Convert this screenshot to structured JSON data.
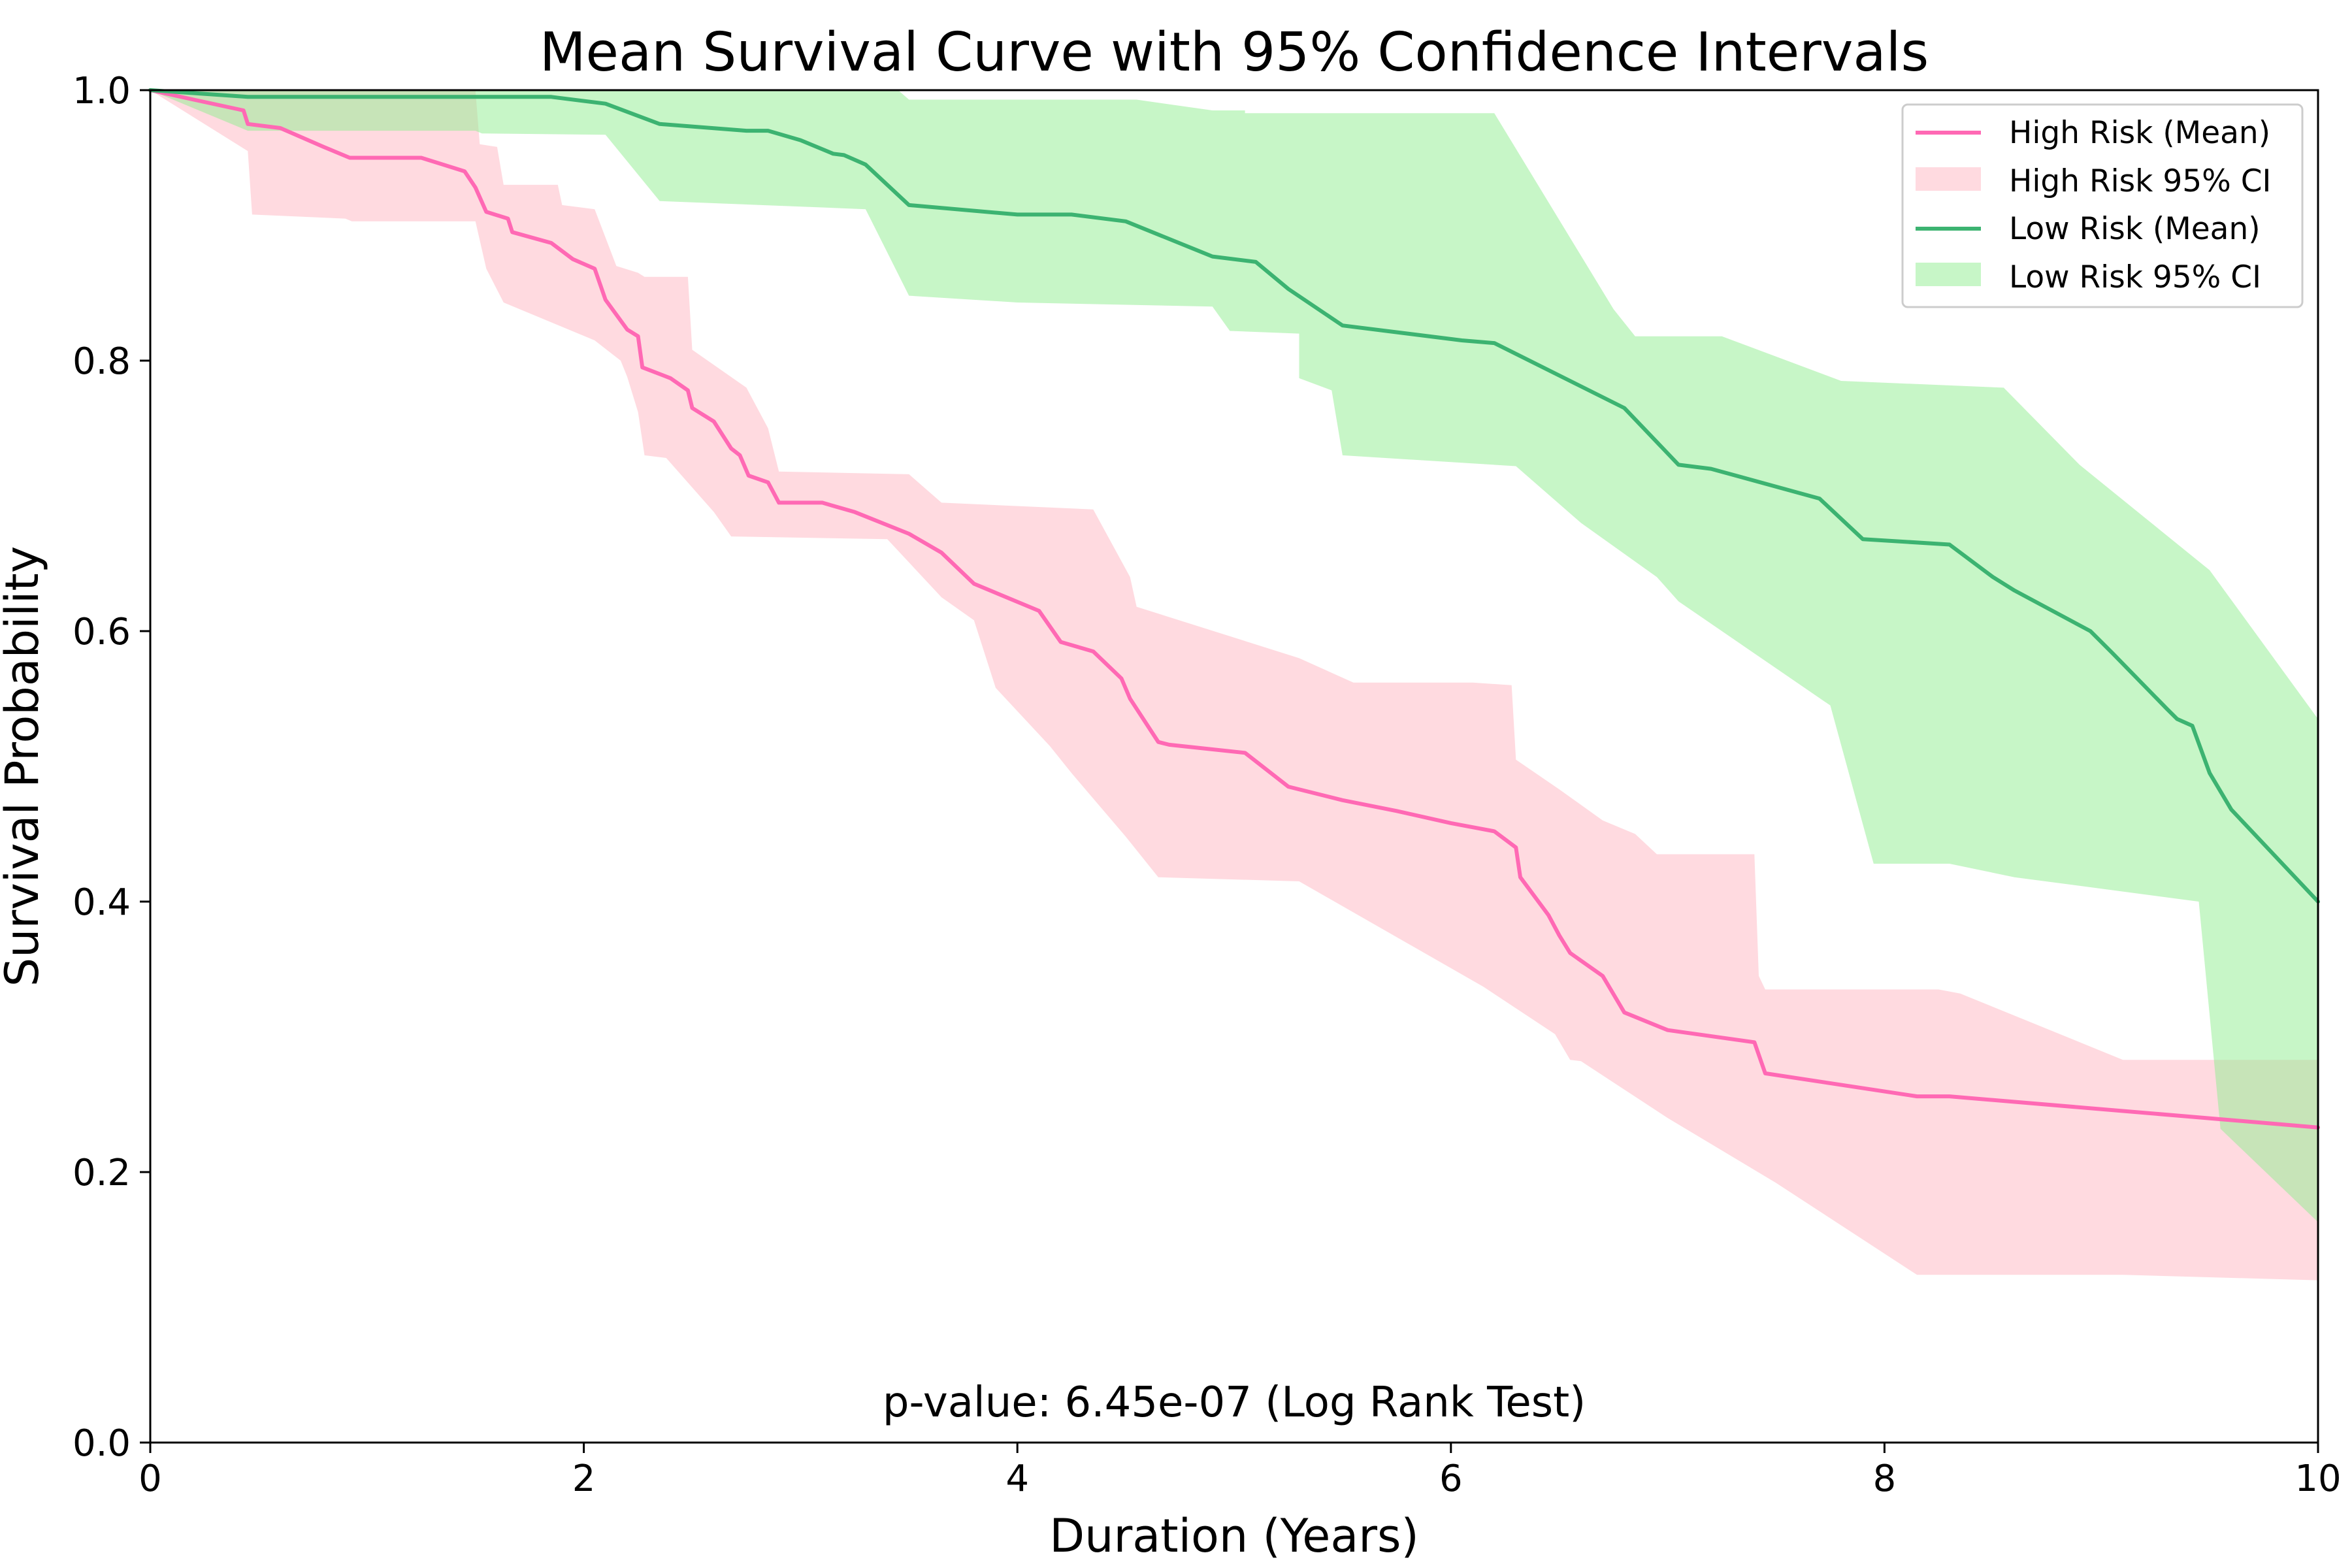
{
  "chart_data": {
    "type": "line",
    "title": "Mean Survival Curve with 95% Confidence Intervals",
    "xlabel": "Duration (Years)",
    "ylabel": "Survival Probability",
    "xlim": [
      0,
      10
    ],
    "ylim": [
      0,
      1
    ],
    "x_ticks": [
      "0",
      "2",
      "4",
      "6",
      "8",
      "10"
    ],
    "y_ticks": [
      "0.0",
      "0.2",
      "0.4",
      "0.6",
      "0.8",
      "1.0"
    ],
    "grid": false,
    "legend_position": "top-right",
    "annotation": "p-value: 6.45e-07 (Log Rank Test)",
    "series": [
      {
        "name": "High Risk (Mean)",
        "ci_name": "High Risk 95% CI",
        "color": "#ff69b4",
        "ci_color": "#ffb6c1",
        "mean": [
          [
            0,
            1.0
          ],
          [
            0.2,
            0.993
          ],
          [
            0.43,
            0.985
          ],
          [
            0.45,
            0.975
          ],
          [
            0.6,
            0.972
          ],
          [
            0.8,
            0.958
          ],
          [
            0.92,
            0.95
          ],
          [
            1.25,
            0.95
          ],
          [
            1.45,
            0.94
          ],
          [
            1.5,
            0.928
          ],
          [
            1.55,
            0.91
          ],
          [
            1.65,
            0.905
          ],
          [
            1.67,
            0.895
          ],
          [
            1.85,
            0.887
          ],
          [
            1.95,
            0.875
          ],
          [
            2.05,
            0.868
          ],
          [
            2.1,
            0.845
          ],
          [
            2.2,
            0.823
          ],
          [
            2.25,
            0.818
          ],
          [
            2.27,
            0.795
          ],
          [
            2.4,
            0.787
          ],
          [
            2.48,
            0.778
          ],
          [
            2.5,
            0.765
          ],
          [
            2.6,
            0.755
          ],
          [
            2.68,
            0.735
          ],
          [
            2.72,
            0.73
          ],
          [
            2.76,
            0.715
          ],
          [
            2.85,
            0.71
          ],
          [
            2.9,
            0.695
          ],
          [
            3.1,
            0.695
          ],
          [
            3.25,
            0.688
          ],
          [
            3.5,
            0.672
          ],
          [
            3.65,
            0.658
          ],
          [
            3.8,
            0.635
          ],
          [
            4.1,
            0.615
          ],
          [
            4.2,
            0.592
          ],
          [
            4.35,
            0.585
          ],
          [
            4.48,
            0.565
          ],
          [
            4.52,
            0.55
          ],
          [
            4.65,
            0.518
          ],
          [
            4.7,
            0.516
          ],
          [
            5.05,
            0.51
          ],
          [
            5.25,
            0.485
          ],
          [
            5.5,
            0.475
          ],
          [
            5.75,
            0.467
          ],
          [
            6.0,
            0.458
          ],
          [
            6.2,
            0.452
          ],
          [
            6.3,
            0.44
          ],
          [
            6.32,
            0.418
          ],
          [
            6.45,
            0.39
          ],
          [
            6.5,
            0.375
          ],
          [
            6.55,
            0.362
          ],
          [
            6.7,
            0.345
          ],
          [
            6.8,
            0.318
          ],
          [
            7.0,
            0.305
          ],
          [
            7.4,
            0.296
          ],
          [
            7.45,
            0.273
          ],
          [
            8.15,
            0.256
          ],
          [
            8.3,
            0.256
          ],
          [
            10.0,
            0.233
          ]
        ],
        "ci_upper": [
          [
            0,
            1.0
          ],
          [
            0.45,
            1.0
          ],
          [
            1.5,
            1.0
          ],
          [
            1.52,
            0.96
          ],
          [
            1.6,
            0.958
          ],
          [
            1.63,
            0.93
          ],
          [
            1.88,
            0.93
          ],
          [
            1.9,
            0.915
          ],
          [
            2.05,
            0.912
          ],
          [
            2.15,
            0.87
          ],
          [
            2.25,
            0.865
          ],
          [
            2.28,
            0.862
          ],
          [
            2.48,
            0.862
          ],
          [
            2.5,
            0.808
          ],
          [
            2.75,
            0.78
          ],
          [
            2.85,
            0.75
          ],
          [
            2.9,
            0.718
          ],
          [
            3.5,
            0.716
          ],
          [
            3.65,
            0.695
          ],
          [
            4.35,
            0.69
          ],
          [
            4.52,
            0.64
          ],
          [
            4.55,
            0.618
          ],
          [
            5.3,
            0.58
          ],
          [
            5.55,
            0.562
          ],
          [
            6.1,
            0.562
          ],
          [
            6.28,
            0.56
          ],
          [
            6.3,
            0.505
          ],
          [
            6.5,
            0.483
          ],
          [
            6.7,
            0.46
          ],
          [
            6.85,
            0.45
          ],
          [
            6.95,
            0.435
          ],
          [
            7.4,
            0.435
          ],
          [
            7.42,
            0.345
          ],
          [
            7.45,
            0.335
          ],
          [
            8.25,
            0.335
          ],
          [
            8.35,
            0.332
          ],
          [
            9.1,
            0.283
          ],
          [
            10.0,
            0.283
          ]
        ],
        "ci_lower": [
          [
            0,
            1.0
          ],
          [
            0.45,
            0.955
          ],
          [
            0.47,
            0.908
          ],
          [
            0.9,
            0.905
          ],
          [
            0.93,
            0.903
          ],
          [
            1.5,
            0.903
          ],
          [
            1.55,
            0.868
          ],
          [
            1.63,
            0.843
          ],
          [
            2.05,
            0.815
          ],
          [
            2.17,
            0.8
          ],
          [
            2.2,
            0.788
          ],
          [
            2.25,
            0.762
          ],
          [
            2.28,
            0.73
          ],
          [
            2.38,
            0.728
          ],
          [
            2.6,
            0.688
          ],
          [
            2.68,
            0.67
          ],
          [
            3.4,
            0.668
          ],
          [
            3.65,
            0.625
          ],
          [
            3.8,
            0.608
          ],
          [
            3.9,
            0.558
          ],
          [
            4.15,
            0.515
          ],
          [
            4.25,
            0.495
          ],
          [
            4.5,
            0.448
          ],
          [
            4.65,
            0.418
          ],
          [
            5.3,
            0.415
          ],
          [
            6.15,
            0.337
          ],
          [
            6.48,
            0.302
          ],
          [
            6.55,
            0.283
          ],
          [
            6.6,
            0.282
          ],
          [
            7.0,
            0.24
          ],
          [
            7.5,
            0.192
          ],
          [
            8.15,
            0.124
          ],
          [
            9.1,
            0.124
          ],
          [
            10.0,
            0.12
          ]
        ]
      },
      {
        "name": "Low Risk (Mean)",
        "ci_name": "Low Risk 95% CI",
        "color": "#3cb371",
        "ci_color": "#90ee90",
        "mean": [
          [
            0,
            1.0
          ],
          [
            0.45,
            0.995
          ],
          [
            1.85,
            0.995
          ],
          [
            2.1,
            0.99
          ],
          [
            2.35,
            0.975
          ],
          [
            2.75,
            0.97
          ],
          [
            2.85,
            0.97
          ],
          [
            3.0,
            0.963
          ],
          [
            3.15,
            0.953
          ],
          [
            3.2,
            0.952
          ],
          [
            3.3,
            0.945
          ],
          [
            3.5,
            0.915
          ],
          [
            4.0,
            0.908
          ],
          [
            4.25,
            0.908
          ],
          [
            4.5,
            0.903
          ],
          [
            4.9,
            0.877
          ],
          [
            5.1,
            0.873
          ],
          [
            5.25,
            0.853
          ],
          [
            5.5,
            0.826
          ],
          [
            6.05,
            0.815
          ],
          [
            6.2,
            0.813
          ],
          [
            6.8,
            0.765
          ],
          [
            7.05,
            0.723
          ],
          [
            7.2,
            0.72
          ],
          [
            7.7,
            0.698
          ],
          [
            7.9,
            0.668
          ],
          [
            8.3,
            0.664
          ],
          [
            8.5,
            0.64
          ],
          [
            8.6,
            0.63
          ],
          [
            8.95,
            0.6
          ],
          [
            9.05,
            0.584
          ],
          [
            9.3,
            0.543
          ],
          [
            9.35,
            0.535
          ],
          [
            9.42,
            0.53
          ],
          [
            9.5,
            0.495
          ],
          [
            9.6,
            0.468
          ],
          [
            10.0,
            0.4
          ]
        ],
        "ci_upper": [
          [
            0,
            1.0
          ],
          [
            0.45,
            1.0
          ],
          [
            3.45,
            1.0
          ],
          [
            3.5,
            0.993
          ],
          [
            4.55,
            0.993
          ],
          [
            4.9,
            0.985
          ],
          [
            5.05,
            0.985
          ],
          [
            5.05,
            0.983
          ],
          [
            5.15,
            0.983
          ],
          [
            6.2,
            0.983
          ],
          [
            6.75,
            0.838
          ],
          [
            6.85,
            0.818
          ],
          [
            7.25,
            0.818
          ],
          [
            7.8,
            0.785
          ],
          [
            8.55,
            0.78
          ],
          [
            8.9,
            0.723
          ],
          [
            9.5,
            0.645
          ],
          [
            10.0,
            0.535
          ]
        ],
        "ci_lower": [
          [
            0,
            1.0
          ],
          [
            0.45,
            0.97
          ],
          [
            1.5,
            0.97
          ],
          [
            1.53,
            0.968
          ],
          [
            2.1,
            0.967
          ],
          [
            2.35,
            0.918
          ],
          [
            3.3,
            0.912
          ],
          [
            3.5,
            0.848
          ],
          [
            4.0,
            0.843
          ],
          [
            4.9,
            0.84
          ],
          [
            4.98,
            0.822
          ],
          [
            5.3,
            0.82
          ],
          [
            5.3,
            0.787
          ],
          [
            5.45,
            0.778
          ],
          [
            5.5,
            0.73
          ],
          [
            6.3,
            0.722
          ],
          [
            6.6,
            0.68
          ],
          [
            6.95,
            0.64
          ],
          [
            7.05,
            0.622
          ],
          [
            7.75,
            0.545
          ],
          [
            7.95,
            0.428
          ],
          [
            8.3,
            0.428
          ],
          [
            8.6,
            0.418
          ],
          [
            9.45,
            0.4
          ],
          [
            9.55,
            0.232
          ],
          [
            10.0,
            0.163
          ]
        ]
      }
    ]
  }
}
